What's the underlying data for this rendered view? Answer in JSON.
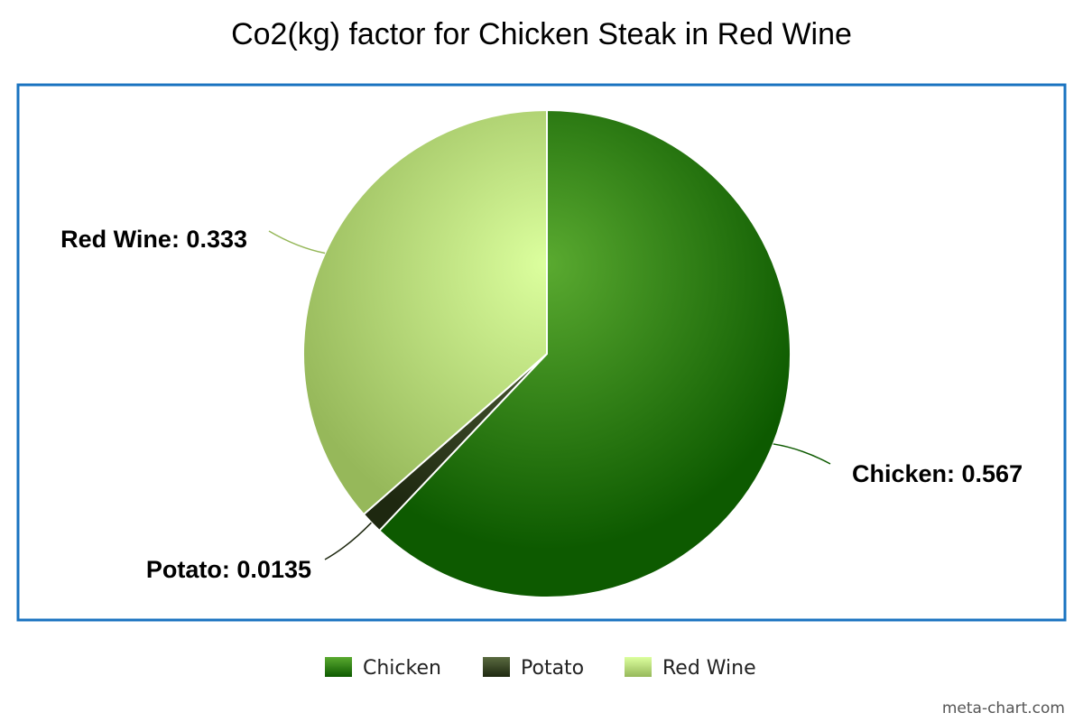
{
  "chart_data": {
    "type": "pie",
    "title": "Co2(kg) factor for Chicken Steak in Red Wine",
    "slices": [
      {
        "label": "Chicken",
        "value": 0.567,
        "display_value": "0.567",
        "color": "#1f7a0c",
        "light": "#5aaa30",
        "dark": "#0d5a00"
      },
      {
        "label": "Potato",
        "value": 0.0135,
        "display_value": "0.0135",
        "color": "#2e3a1a",
        "light": "#5a6a40",
        "dark": "#1e2810"
      },
      {
        "label": "Red Wine",
        "value": 0.333,
        "display_value": "0.333",
        "color": "#b8dc88",
        "light": "#dcff9e",
        "dark": "#96b85a"
      }
    ],
    "legend": [
      "Chicken",
      "Potato",
      "Red Wine"
    ],
    "legend_position": "bottom",
    "frame_color": "#1a73c0"
  },
  "credit": "meta-chart.com"
}
